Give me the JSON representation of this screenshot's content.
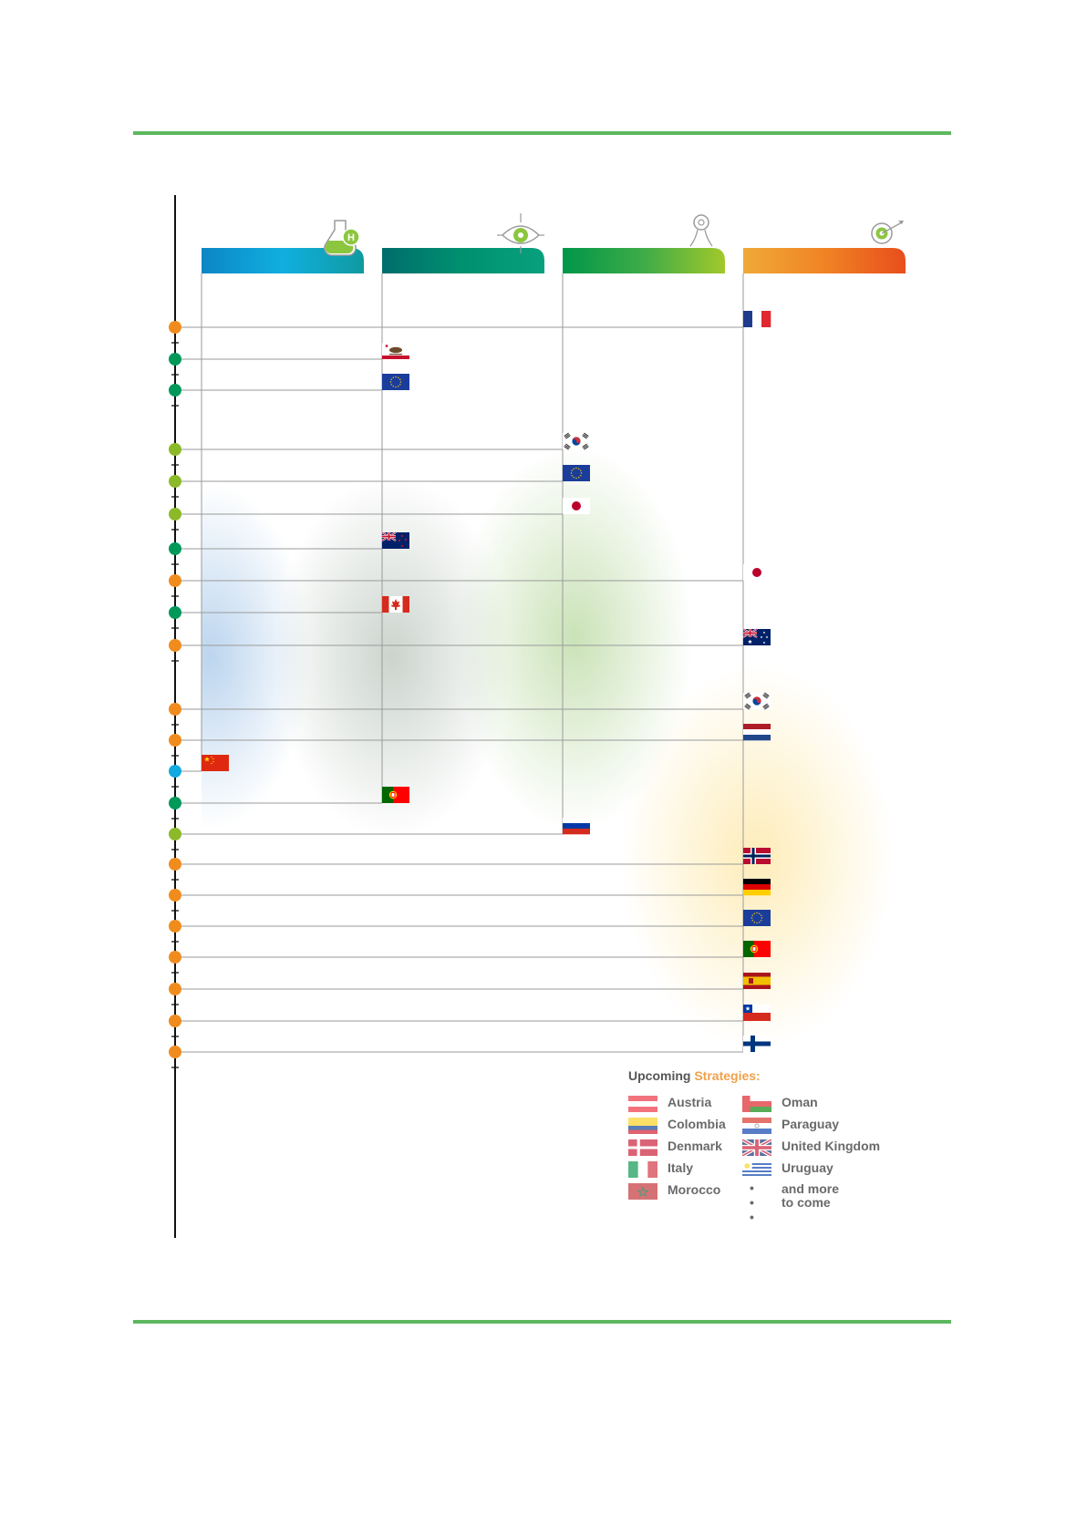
{
  "colors": {
    "rule": "#5cb85f",
    "dot_orange": "#f08c1e",
    "dot_teal": "#00995a",
    "dot_lime": "#8cb928",
    "dot_blue": "#13a9e1",
    "line": "#9a9a9a"
  },
  "columns": [
    {
      "key": "research",
      "gradient": [
        "#0b86c4",
        "#11afe0",
        "#0f9aa0"
      ],
      "icon": "flask-h-icon"
    },
    {
      "key": "vision",
      "gradient": [
        "#006d6c",
        "#00916f",
        "#08a07e"
      ],
      "icon": "eye-icon"
    },
    {
      "key": "roadmap",
      "gradient": [
        "#009649",
        "#3eac48",
        "#a2c82b"
      ],
      "icon": "road-pin-icon"
    },
    {
      "key": "strategy",
      "gradient": [
        "#f0a936",
        "#f08425",
        "#e84e1c"
      ],
      "icon": "target-icon"
    }
  ],
  "timeline_rows": [
    {
      "dot": "orange",
      "col": 3,
      "flag": "france"
    },
    {
      "dot": "teal",
      "col": 1,
      "flag": "california"
    },
    {
      "dot": "teal",
      "col": 1,
      "flag": "eu"
    },
    {
      "dot": "lime",
      "col": 2,
      "flag": "korea"
    },
    {
      "dot": "lime",
      "col": 2,
      "flag": "eu"
    },
    {
      "dot": "lime",
      "col": 2,
      "flag": "japan"
    },
    {
      "dot": "teal",
      "col": 1,
      "flag": "new-zealand"
    },
    {
      "dot": "orange",
      "col": 3,
      "flag": "japan"
    },
    {
      "dot": "teal",
      "col": 1,
      "flag": "canada"
    },
    {
      "dot": "orange",
      "col": 3,
      "flag": "australia"
    },
    {
      "dot": "orange",
      "col": 3,
      "flag": "korea"
    },
    {
      "dot": "orange",
      "col": 3,
      "flag": "netherlands"
    },
    {
      "dot": "blue",
      "col": 0,
      "flag": "china"
    },
    {
      "dot": "teal",
      "col": 1,
      "flag": "portugal"
    },
    {
      "dot": "lime",
      "col": 2,
      "flag": "russia"
    },
    {
      "dot": "orange",
      "col": 3,
      "flag": "norway"
    },
    {
      "dot": "orange",
      "col": 3,
      "flag": "germany"
    },
    {
      "dot": "orange",
      "col": 3,
      "flag": "eu"
    },
    {
      "dot": "orange",
      "col": 3,
      "flag": "portugal"
    },
    {
      "dot": "orange",
      "col": 3,
      "flag": "spain"
    },
    {
      "dot": "orange",
      "col": 3,
      "flag": "chile"
    },
    {
      "dot": "orange",
      "col": 3,
      "flag": "finland"
    }
  ],
  "legend": {
    "title_prefix": "Upcoming",
    "title_highlight": "Strategies:",
    "items": [
      {
        "label": "Austria",
        "flag": "austria"
      },
      {
        "label": "Colombia",
        "flag": "colombia"
      },
      {
        "label": "Denmark",
        "flag": "denmark"
      },
      {
        "label": "Italy",
        "flag": "italy"
      },
      {
        "label": "Morocco",
        "flag": "morocco"
      },
      {
        "label": "Oman",
        "flag": "oman"
      },
      {
        "label": "Paraguay",
        "flag": "paraguay"
      },
      {
        "label": "United Kingdom",
        "flag": "united-kingdom"
      },
      {
        "label": "Uruguay",
        "flag": "uruguay"
      }
    ],
    "more_dots": "• • •",
    "more_line1": "and more",
    "more_line2": "to come"
  }
}
